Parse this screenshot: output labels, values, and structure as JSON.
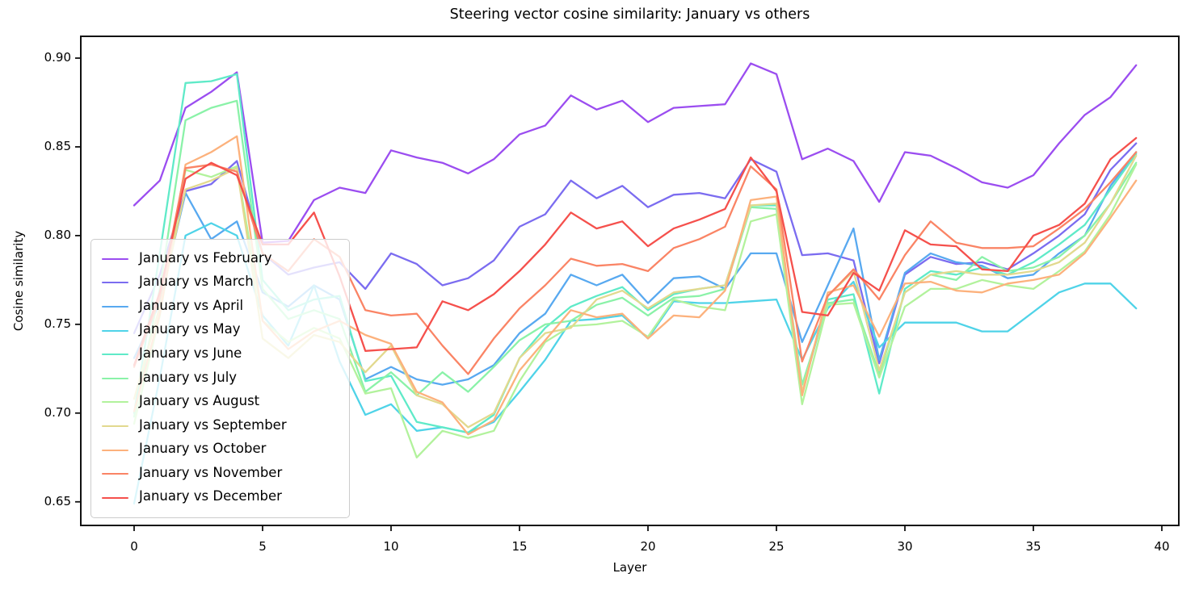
{
  "figure": {
    "title": "Steering vector cosine similarity: January vs others",
    "xlabel": "Layer",
    "ylabel": "Cosine similarity"
  },
  "chart_data": {
    "type": "line",
    "title": "Steering vector cosine similarity: January vs others",
    "xlabel": "Layer",
    "ylabel": "Cosine similarity",
    "grid": false,
    "legend_position": "center left",
    "xlim": [
      -2.1,
      40.7
    ],
    "ylim": [
      0.637,
      0.912
    ],
    "xticks": [
      0,
      5,
      10,
      15,
      20,
      25,
      30,
      35,
      40
    ],
    "ytick_labels": [
      "0.65",
      "0.70",
      "0.75",
      "0.80",
      "0.85",
      "0.90"
    ],
    "yticks": [
      0.65,
      0.7,
      0.75,
      0.8,
      0.85,
      0.9
    ],
    "x": [
      0,
      1,
      2,
      3,
      4,
      5,
      6,
      7,
      8,
      9,
      10,
      11,
      12,
      13,
      14,
      15,
      16,
      17,
      18,
      19,
      20,
      21,
      22,
      23,
      24,
      25,
      26,
      27,
      28,
      29,
      30,
      31,
      32,
      33,
      34,
      35,
      36,
      37,
      38,
      39
    ],
    "series": [
      {
        "name": "January vs February",
        "color": "#9b4df0",
        "values": [
          0.817,
          0.831,
          0.872,
          0.881,
          0.892,
          0.796,
          0.797,
          0.82,
          0.827,
          0.824,
          0.848,
          0.844,
          0.841,
          0.835,
          0.843,
          0.857,
          0.862,
          0.879,
          0.871,
          0.876,
          0.864,
          0.872,
          0.873,
          0.874,
          0.897,
          0.891,
          0.843,
          0.849,
          0.842,
          0.819,
          0.847,
          0.845,
          0.838,
          0.83,
          0.827,
          0.834,
          0.852,
          0.868,
          0.878,
          0.896
        ]
      },
      {
        "name": "January vs March",
        "color": "#7b6cf0",
        "values": [
          0.745,
          0.778,
          0.825,
          0.829,
          0.842,
          0.79,
          0.778,
          0.782,
          0.785,
          0.77,
          0.79,
          0.784,
          0.772,
          0.776,
          0.786,
          0.805,
          0.812,
          0.831,
          0.821,
          0.828,
          0.816,
          0.823,
          0.824,
          0.821,
          0.843,
          0.836,
          0.789,
          0.79,
          0.786,
          0.728,
          0.778,
          0.788,
          0.784,
          0.785,
          0.781,
          0.79,
          0.8,
          0.812,
          0.837,
          0.852
        ]
      },
      {
        "name": "January vs April",
        "color": "#58a9f0",
        "values": [
          0.731,
          0.762,
          0.824,
          0.798,
          0.808,
          0.768,
          0.76,
          0.772,
          0.764,
          0.719,
          0.726,
          0.719,
          0.716,
          0.719,
          0.727,
          0.745,
          0.756,
          0.778,
          0.772,
          0.778,
          0.762,
          0.776,
          0.777,
          0.77,
          0.79,
          0.79,
          0.74,
          0.772,
          0.804,
          0.73,
          0.779,
          0.79,
          0.785,
          0.783,
          0.776,
          0.778,
          0.79,
          0.8,
          0.828,
          0.847
        ]
      },
      {
        "name": "January vs May",
        "color": "#4fd3e8",
        "values": [
          0.649,
          0.72,
          0.8,
          0.807,
          0.8,
          0.755,
          0.738,
          0.772,
          0.729,
          0.699,
          0.705,
          0.69,
          0.692,
          0.689,
          0.695,
          0.712,
          0.73,
          0.752,
          0.753,
          0.755,
          0.742,
          0.763,
          0.762,
          0.762,
          0.763,
          0.764,
          0.73,
          0.759,
          0.774,
          0.737,
          0.751,
          0.751,
          0.751,
          0.746,
          0.746,
          0.757,
          0.768,
          0.773,
          0.773,
          0.759
        ]
      },
      {
        "name": "January vs June",
        "color": "#5feac8",
        "values": [
          0.7,
          0.79,
          0.886,
          0.887,
          0.891,
          0.775,
          0.758,
          0.764,
          0.766,
          0.718,
          0.721,
          0.695,
          0.692,
          0.689,
          0.699,
          0.731,
          0.748,
          0.76,
          0.766,
          0.771,
          0.758,
          0.767,
          0.77,
          0.772,
          0.817,
          0.817,
          0.712,
          0.764,
          0.767,
          0.711,
          0.77,
          0.78,
          0.778,
          0.782,
          0.778,
          0.785,
          0.795,
          0.806,
          0.826,
          0.846
        ]
      },
      {
        "name": "January vs July",
        "color": "#8af2a8",
        "values": [
          0.698,
          0.77,
          0.865,
          0.872,
          0.876,
          0.77,
          0.753,
          0.758,
          0.753,
          0.712,
          0.723,
          0.71,
          0.723,
          0.712,
          0.726,
          0.741,
          0.75,
          0.752,
          0.761,
          0.765,
          0.755,
          0.765,
          0.766,
          0.77,
          0.816,
          0.815,
          0.716,
          0.762,
          0.764,
          0.722,
          0.768,
          0.778,
          0.775,
          0.788,
          0.78,
          0.782,
          0.788,
          0.8,
          0.818,
          0.841
        ]
      },
      {
        "name": "January vs August",
        "color": "#b2f29c",
        "values": [
          0.694,
          0.755,
          0.837,
          0.833,
          0.839,
          0.752,
          0.74,
          0.748,
          0.742,
          0.711,
          0.714,
          0.675,
          0.69,
          0.686,
          0.69,
          0.718,
          0.74,
          0.749,
          0.75,
          0.752,
          0.743,
          0.764,
          0.76,
          0.758,
          0.808,
          0.812,
          0.705,
          0.761,
          0.762,
          0.72,
          0.76,
          0.77,
          0.77,
          0.775,
          0.772,
          0.77,
          0.78,
          0.791,
          0.812,
          0.84
        ]
      },
      {
        "name": "January vs September",
        "color": "#e2d98e",
        "values": [
          0.708,
          0.76,
          0.826,
          0.831,
          0.838,
          0.742,
          0.731,
          0.744,
          0.74,
          0.723,
          0.738,
          0.71,
          0.705,
          0.692,
          0.7,
          0.731,
          0.745,
          0.748,
          0.764,
          0.769,
          0.759,
          0.768,
          0.77,
          0.772,
          0.817,
          0.818,
          0.712,
          0.766,
          0.78,
          0.724,
          0.768,
          0.778,
          0.78,
          0.778,
          0.778,
          0.78,
          0.785,
          0.796,
          0.818,
          0.845
        ]
      },
      {
        "name": "January vs October",
        "color": "#fcb17c",
        "values": [
          0.701,
          0.756,
          0.84,
          0.847,
          0.856,
          0.752,
          0.736,
          0.746,
          0.752,
          0.744,
          0.739,
          0.712,
          0.706,
          0.688,
          0.696,
          0.724,
          0.741,
          0.758,
          0.754,
          0.756,
          0.742,
          0.755,
          0.754,
          0.769,
          0.82,
          0.822,
          0.71,
          0.768,
          0.772,
          0.743,
          0.773,
          0.774,
          0.769,
          0.768,
          0.773,
          0.775,
          0.778,
          0.79,
          0.81,
          0.831
        ]
      },
      {
        "name": "January vs November",
        "color": "#fa8465",
        "values": [
          0.726,
          0.765,
          0.838,
          0.84,
          0.836,
          0.79,
          0.78,
          0.798,
          0.788,
          0.758,
          0.755,
          0.756,
          0.738,
          0.722,
          0.742,
          0.759,
          0.772,
          0.787,
          0.783,
          0.784,
          0.78,
          0.793,
          0.798,
          0.805,
          0.839,
          0.826,
          0.729,
          0.766,
          0.781,
          0.764,
          0.789,
          0.808,
          0.796,
          0.793,
          0.793,
          0.794,
          0.804,
          0.815,
          0.83,
          0.847
        ]
      },
      {
        "name": "January vs December",
        "color": "#f5504c",
        "values": [
          0.727,
          0.768,
          0.832,
          0.841,
          0.834,
          0.795,
          0.795,
          0.813,
          0.777,
          0.735,
          0.736,
          0.737,
          0.763,
          0.758,
          0.767,
          0.78,
          0.795,
          0.813,
          0.804,
          0.808,
          0.794,
          0.804,
          0.809,
          0.815,
          0.844,
          0.825,
          0.757,
          0.755,
          0.779,
          0.769,
          0.803,
          0.795,
          0.794,
          0.781,
          0.78,
          0.8,
          0.806,
          0.818,
          0.843,
          0.855
        ]
      }
    ]
  }
}
